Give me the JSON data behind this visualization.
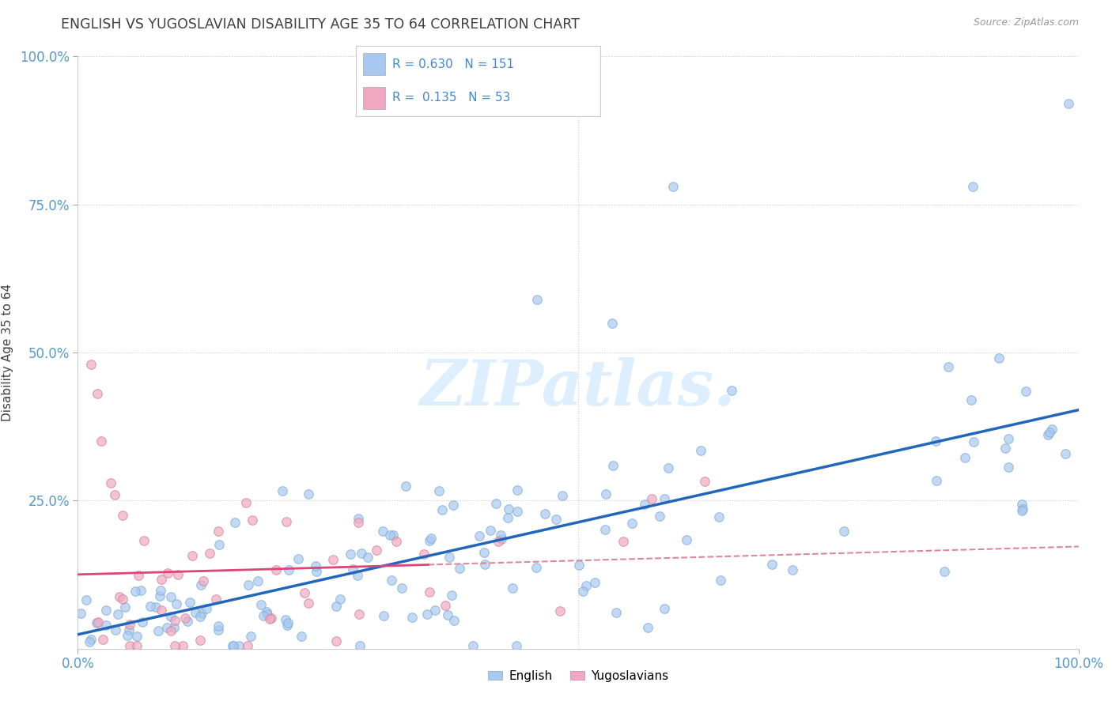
{
  "title": "ENGLISH VS YUGOSLAVIAN DISABILITY AGE 35 TO 64 CORRELATION CHART",
  "source": "Source: ZipAtlas.com",
  "ylabel": "Disability Age 35 to 64",
  "xlim": [
    0,
    1
  ],
  "ylim": [
    0,
    1
  ],
  "english_R": 0.63,
  "english_N": 151,
  "yugoslavian_R": 0.135,
  "yugoslavian_N": 53,
  "english_color": "#a8c8f0",
  "english_edge_color": "#7aaad0",
  "yugoslavian_color": "#f0a8c0",
  "yugoslavian_edge_color": "#d08098",
  "english_line_color": "#2266bb",
  "yugoslavian_line_solid_color": "#dd4477",
  "yugoslavian_line_dash_color": "#dd8899",
  "watermark_color": "#ddeeff",
  "background_color": "#ffffff",
  "grid_color": "#cccccc",
  "title_color": "#404040",
  "axis_label_color": "#404040",
  "tick_label_color": "#5599cc",
  "annotation_color": "#4488cc",
  "legend_label_english": "English",
  "legend_label_yugoslavian": "Yugoslavians"
}
